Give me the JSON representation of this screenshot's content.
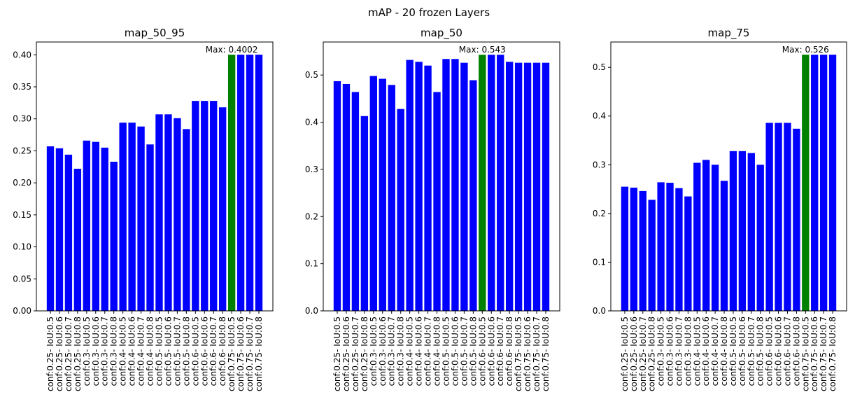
{
  "figure": {
    "title": "mAP - 20 frozen Layers"
  },
  "colors": {
    "bar": "#0000ff",
    "max_bar": "#008000",
    "axis": "#000000",
    "background": "#ffffff"
  },
  "chart_data": [
    {
      "type": "bar",
      "title": "map_50_95",
      "xlabel": "",
      "ylabel": "",
      "ylim": [
        0,
        0.42
      ],
      "yticks": [
        "0.00",
        "0.05",
        "0.10",
        "0.15",
        "0.20",
        "0.25",
        "0.30",
        "0.35",
        "0.40"
      ],
      "grid": false,
      "categories": [
        "conf:0.25- IoU:0.5",
        "conf:0.25- IoU:0.6",
        "conf:0.25- IoU:0.7",
        "conf:0.25- IoU:0.8",
        "conf:0.3- IoU:0.5",
        "conf:0.3- IoU:0.6",
        "conf:0.3- IoU:0.7",
        "conf:0.3- IoU:0.8",
        "conf:0.4- IoU:0.5",
        "conf:0.4- IoU:0.6",
        "conf:0.4- IoU:0.7",
        "conf:0.4- IoU:0.8",
        "conf:0.5- IoU:0.5",
        "conf:0.5- IoU:0.6",
        "conf:0.5- IoU:0.7",
        "conf:0.5- IoU:0.8",
        "conf:0.6- IoU:0.5",
        "conf:0.6- IoU:0.6",
        "conf:0.6- IoU:0.7",
        "conf:0.6- IoU:0.8",
        "conf:0.75- IoU:0.5",
        "conf:0.75- IoU:0.6",
        "conf:0.75- IoU:0.7",
        "conf:0.75- IoU:0.8"
      ],
      "values": [
        0.257,
        0.254,
        0.244,
        0.222,
        0.266,
        0.264,
        0.255,
        0.233,
        0.294,
        0.294,
        0.288,
        0.26,
        0.307,
        0.307,
        0.301,
        0.284,
        0.328,
        0.328,
        0.328,
        0.318,
        0.4002,
        0.4002,
        0.4002,
        0.4002
      ],
      "highlight_index": 20,
      "annotation": "Max: 0.4002"
    },
    {
      "type": "bar",
      "title": "map_50",
      "xlabel": "",
      "ylabel": "",
      "ylim": [
        0,
        0.57
      ],
      "yticks": [
        "0.0",
        "0.1",
        "0.2",
        "0.3",
        "0.4",
        "0.5"
      ],
      "grid": false,
      "categories": [
        "conf:0.25- IoU:0.5",
        "conf:0.25- IoU:0.6",
        "conf:0.25- IoU:0.7",
        "conf:0.25- IoU:0.8",
        "conf:0.3- IoU:0.5",
        "conf:0.3- IoU:0.6",
        "conf:0.3- IoU:0.7",
        "conf:0.3- IoU:0.8",
        "conf:0.4- IoU:0.5",
        "conf:0.4- IoU:0.6",
        "conf:0.4- IoU:0.7",
        "conf:0.4- IoU:0.8",
        "conf:0.5- IoU:0.5",
        "conf:0.5- IoU:0.6",
        "conf:0.5- IoU:0.7",
        "conf:0.5- IoU:0.8",
        "conf:0.6- IoU:0.5",
        "conf:0.6- IoU:0.6",
        "conf:0.6- IoU:0.7",
        "conf:0.6- IoU:0.8",
        "conf:0.75- IoU:0.5",
        "conf:0.75- IoU:0.6",
        "conf:0.75- IoU:0.7",
        "conf:0.75- IoU:0.8"
      ],
      "values": [
        0.487,
        0.481,
        0.464,
        0.413,
        0.498,
        0.492,
        0.479,
        0.428,
        0.532,
        0.528,
        0.52,
        0.464,
        0.534,
        0.534,
        0.526,
        0.489,
        0.543,
        0.543,
        0.543,
        0.528,
        0.526,
        0.526,
        0.526,
        0.526
      ],
      "highlight_index": 16,
      "annotation": "Max: 0.543"
    },
    {
      "type": "bar",
      "title": "map_75",
      "xlabel": "",
      "ylabel": "",
      "ylim": [
        0,
        0.552
      ],
      "yticks": [
        "0.0",
        "0.1",
        "0.2",
        "0.3",
        "0.4",
        "0.5"
      ],
      "grid": false,
      "categories": [
        "conf:0.25- IoU:0.5",
        "conf:0.25- IoU:0.6",
        "conf:0.25- IoU:0.7",
        "conf:0.25- IoU:0.8",
        "conf:0.3- IoU:0.5",
        "conf:0.3- IoU:0.6",
        "conf:0.3- IoU:0.7",
        "conf:0.3- IoU:0.8",
        "conf:0.4- IoU:0.5",
        "conf:0.4- IoU:0.6",
        "conf:0.4- IoU:0.7",
        "conf:0.4- IoU:0.8",
        "conf:0.5- IoU:0.5",
        "conf:0.5- IoU:0.6",
        "conf:0.5- IoU:0.7",
        "conf:0.5- IoU:0.8",
        "conf:0.6- IoU:0.5",
        "conf:0.6- IoU:0.6",
        "conf:0.6- IoU:0.7",
        "conf:0.6- IoU:0.8",
        "conf:0.75- IoU:0.5",
        "conf:0.75- IoU:0.6",
        "conf:0.75- IoU:0.7",
        "conf:0.75- IoU:0.8"
      ],
      "values": [
        0.255,
        0.253,
        0.246,
        0.228,
        0.264,
        0.263,
        0.252,
        0.235,
        0.304,
        0.31,
        0.3,
        0.267,
        0.328,
        0.328,
        0.324,
        0.3,
        0.386,
        0.386,
        0.386,
        0.374,
        0.526,
        0.526,
        0.526,
        0.526
      ],
      "highlight_index": 20,
      "annotation": "Max: 0.526"
    }
  ]
}
